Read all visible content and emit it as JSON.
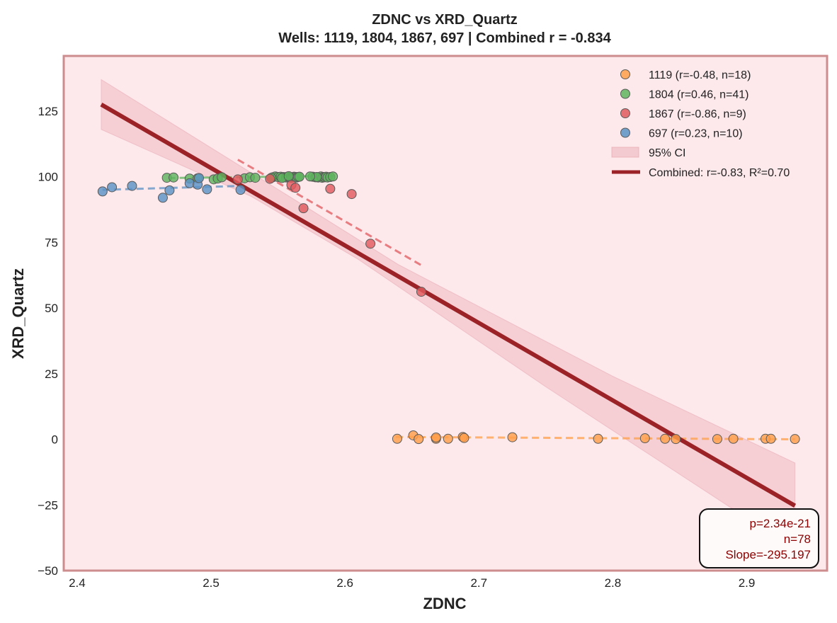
{
  "chart_data": {
    "type": "scatter",
    "title": "ZDNC vs XRD_Quartz",
    "subtitle": "Wells: 1119, 1804, 1867, 697 | Combined r = -0.834",
    "xlabel": "ZDNC",
    "ylabel": "XRD_Quartz",
    "xlim": [
      2.39,
      2.96
    ],
    "ylim": [
      -50,
      146
    ],
    "xticks": [
      "2.4",
      "2.5",
      "2.6",
      "2.7",
      "2.8",
      "2.9"
    ],
    "yticks": [
      "−50",
      "−25",
      "0",
      "25",
      "50",
      "75",
      "100",
      "125"
    ],
    "grid": false,
    "legend_position": "top-right",
    "background_color": "#fde8eb",
    "frame_color": "#cd8d8f",
    "series": [
      {
        "name": "1119 (r=-0.48, n=18)",
        "color": "#ff9f4a",
        "trend": [
          [
            2.638,
            0.9
          ],
          [
            2.936,
            0.0
          ]
        ],
        "points": [
          [
            2.639,
            0.2
          ],
          [
            2.651,
            1.5
          ],
          [
            2.655,
            0.1
          ],
          [
            2.668,
            0.2
          ],
          [
            2.668,
            0.7
          ],
          [
            2.677,
            0.2
          ],
          [
            2.688,
            0.9
          ],
          [
            2.689,
            0.5
          ],
          [
            2.725,
            0.8
          ],
          [
            2.789,
            0.2
          ],
          [
            2.824,
            0.4
          ],
          [
            2.839,
            0.2
          ],
          [
            2.847,
            0.1
          ],
          [
            2.878,
            0.1
          ],
          [
            2.89,
            0.2
          ],
          [
            2.914,
            0.2
          ],
          [
            2.918,
            0.2
          ],
          [
            2.936,
            0.1
          ]
        ]
      },
      {
        "name": "1804 (r=0.46, n=41)",
        "color": "#5fb55f",
        "trend": [
          [
            2.468,
            99.5
          ],
          [
            2.592,
            100.3
          ]
        ],
        "points": [
          [
            2.467,
            99.6
          ],
          [
            2.472,
            99.7
          ],
          [
            2.484,
            99.3
          ],
          [
            2.49,
            99.4
          ],
          [
            2.502,
            99.0
          ],
          [
            2.505,
            99.3
          ],
          [
            2.508,
            99.8
          ],
          [
            2.525,
            99.4
          ],
          [
            2.529,
            99.8
          ],
          [
            2.533,
            99.6
          ],
          [
            2.546,
            99.8
          ],
          [
            2.548,
            100.1
          ],
          [
            2.55,
            99.9
          ],
          [
            2.552,
            100.0
          ],
          [
            2.554,
            99.9
          ],
          [
            2.556,
            99.7
          ],
          [
            2.557,
            100.0
          ],
          [
            2.559,
            99.7
          ],
          [
            2.56,
            99.6
          ],
          [
            2.561,
            99.8
          ],
          [
            2.562,
            100.0
          ],
          [
            2.563,
            99.9
          ],
          [
            2.564,
            99.7
          ],
          [
            2.565,
            99.9
          ],
          [
            2.576,
            100.0
          ],
          [
            2.578,
            99.8
          ],
          [
            2.58,
            99.7
          ],
          [
            2.582,
            100.1
          ],
          [
            2.583,
            99.6
          ],
          [
            2.584,
            99.9
          ],
          [
            2.585,
            99.8
          ],
          [
            2.586,
            100.0
          ],
          [
            2.587,
            99.7
          ],
          [
            2.589,
            99.9
          ],
          [
            2.591,
            100.1
          ],
          [
            2.553,
            99.5
          ],
          [
            2.558,
            100.2
          ],
          [
            2.566,
            100.0
          ],
          [
            2.579,
            99.9
          ],
          [
            2.574,
            100.1
          ],
          [
            2.545,
            99.6
          ]
        ]
      },
      {
        "name": "1867 (r=-0.86, n=9)",
        "color": "#e05a5e",
        "trend": [
          [
            2.52,
            106.5
          ],
          [
            2.658,
            66.0
          ]
        ],
        "points": [
          [
            2.52,
            99.0
          ],
          [
            2.544,
            99.2
          ],
          [
            2.56,
            96.9
          ],
          [
            2.563,
            95.8
          ],
          [
            2.569,
            88.0
          ],
          [
            2.589,
            95.4
          ],
          [
            2.605,
            93.4
          ],
          [
            2.619,
            74.5
          ],
          [
            2.657,
            56.2
          ]
        ]
      },
      {
        "name": "697 (r=0.23, n=10)",
        "color": "#5b92c6",
        "trend": [
          [
            2.419,
            95.0
          ],
          [
            2.522,
            96.5
          ]
        ],
        "points": [
          [
            2.419,
            94.4
          ],
          [
            2.426,
            96.0
          ],
          [
            2.441,
            96.5
          ],
          [
            2.464,
            92.0
          ],
          [
            2.469,
            94.8
          ],
          [
            2.484,
            97.5
          ],
          [
            2.49,
            97.0
          ],
          [
            2.497,
            95.2
          ],
          [
            2.522,
            95.0
          ],
          [
            2.491,
            99.5
          ]
        ]
      }
    ],
    "combined_fit": {
      "name": "Combined: r=-0.83, R²=0.70",
      "color": "#9b2226",
      "line": [
        [
          2.418,
          127.5
        ],
        [
          2.936,
          -25.3
        ]
      ],
      "ci_name": "95% CI",
      "ci_color": "#e7a6b0",
      "ci_upper": [
        [
          2.418,
          137.0
        ],
        [
          2.56,
          92.0
        ],
        [
          2.64,
          66.5
        ],
        [
          2.8,
          24.0
        ],
        [
          2.936,
          -9.0
        ]
      ],
      "ci_lower": [
        [
          2.418,
          118.0
        ],
        [
          2.53,
          92.5
        ],
        [
          2.61,
          68.5
        ],
        [
          2.75,
          20.0
        ],
        [
          2.936,
          -42.0
        ]
      ]
    },
    "stats_box": {
      "line1": "p=2.34e-21",
      "line2": "n=78",
      "line3": "Slope=-295.197"
    }
  }
}
